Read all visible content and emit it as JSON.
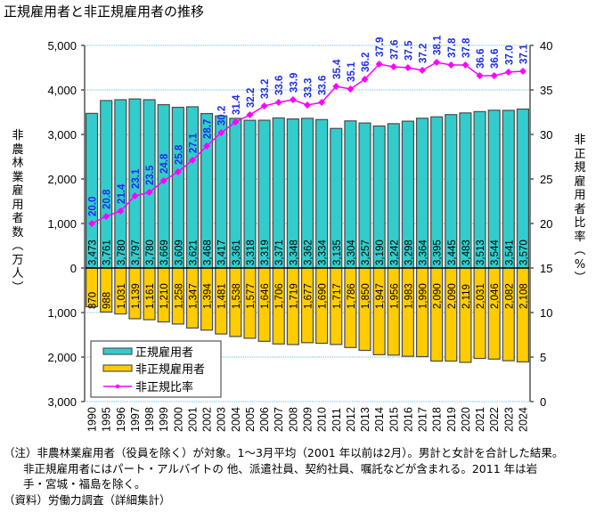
{
  "title": "正規雇用者と非正規雇用者の推移",
  "left_axis_label": [
    "非",
    "農",
    "林",
    "業",
    "雇",
    "用",
    "者",
    "数",
    "︵",
    "万",
    "人",
    "︶"
  ],
  "right_axis_label": [
    "非",
    "正",
    "規",
    "雇",
    "用",
    "者",
    "比",
    "率",
    "︵",
    "%",
    "︶"
  ],
  "notes": [
    "（注）非農林業雇用者（役員を除く）が対象。1～3月平均（2001 年以前は2月）。男計と女計を合計した結果。",
    "非正規雇用者にはパート・アルバイトの 他、派遣社員、契約社員、嘱託などが含まれる。2011 年は岩",
    "手・宮城・福島を除く。",
    "（資料）労働力調査（詳細集計）"
  ],
  "chart_data": {
    "type": "bar",
    "title": "正規雇用者と非正規雇用者の推移",
    "categories": [
      "1990",
      "1995",
      "1996",
      "1997",
      "1998",
      "1999",
      "2000",
      "2001",
      "2002",
      "2003",
      "2004",
      "2005",
      "2006",
      "2007",
      "2008",
      "2009",
      "2010",
      "2011",
      "2012",
      "2013",
      "2014",
      "2015",
      "2016",
      "2017",
      "2018",
      "2019",
      "2020",
      "2021",
      "2022",
      "2023",
      "2024"
    ],
    "series": [
      {
        "name": "正規雇用者",
        "type": "bar",
        "direction": "up",
        "color": "#33CCCC",
        "axis": "left",
        "values": [
          3473,
          3761,
          3780,
          3797,
          3780,
          3669,
          3609,
          3621,
          3468,
          3417,
          3361,
          3318,
          3319,
          3371,
          3348,
          3362,
          3334,
          3135,
          3304,
          3257,
          3190,
          3242,
          3298,
          3364,
          3395,
          3445,
          3483,
          3513,
          3544,
          3541,
          3570
        ]
      },
      {
        "name": "非正規雇用者",
        "type": "bar",
        "direction": "down",
        "color": "#FFCC00",
        "axis": "left",
        "values": [
          870,
          988,
          1031,
          1139,
          1161,
          1210,
          1258,
          1347,
          1394,
          1481,
          1538,
          1577,
          1646,
          1706,
          1719,
          1677,
          1690,
          1717,
          1786,
          1850,
          1947,
          1956,
          1983,
          1990,
          2090,
          2090,
          2119,
          2031,
          2046,
          2082,
          2108
        ]
      },
      {
        "name": "非正規比率",
        "type": "line",
        "color": "#FF00FF",
        "axis": "right",
        "values": [
          20.0,
          20.8,
          21.4,
          23.1,
          23.5,
          24.8,
          25.8,
          27.1,
          28.7,
          30.2,
          31.4,
          32.2,
          33.2,
          33.6,
          33.9,
          33.3,
          33.6,
          35.4,
          35.1,
          36.2,
          37.9,
          37.6,
          37.5,
          37.2,
          38.1,
          37.8,
          37.8,
          36.6,
          36.6,
          37.0,
          37.1
        ]
      }
    ],
    "left_axis": {
      "label": "非農林業雇用者数（万人）",
      "range": [
        -3000,
        5000
      ],
      "ticks": [
        5000,
        4000,
        3000,
        2000,
        1000,
        0,
        -1000,
        -2000,
        -3000
      ],
      "tick_labels": [
        "5,000",
        "4,000",
        "3,000",
        "2,000",
        "1,000",
        "0",
        "1,000",
        "2,000",
        "3,000"
      ]
    },
    "right_axis": {
      "label": "非正規雇用者比率（%）",
      "range": [
        0,
        40
      ],
      "ticks": [
        40,
        35,
        30,
        25,
        20,
        15,
        10,
        5,
        0
      ],
      "tick_labels": [
        "40",
        "35",
        "30",
        "25",
        "20",
        "15",
        "10",
        "5",
        "0"
      ]
    },
    "grid": true,
    "legend": {
      "position": "bottom-left",
      "entries": [
        "正規雇用者",
        "非正規雇用者",
        "非正規比率"
      ]
    },
    "label_color": "#0000FF"
  }
}
